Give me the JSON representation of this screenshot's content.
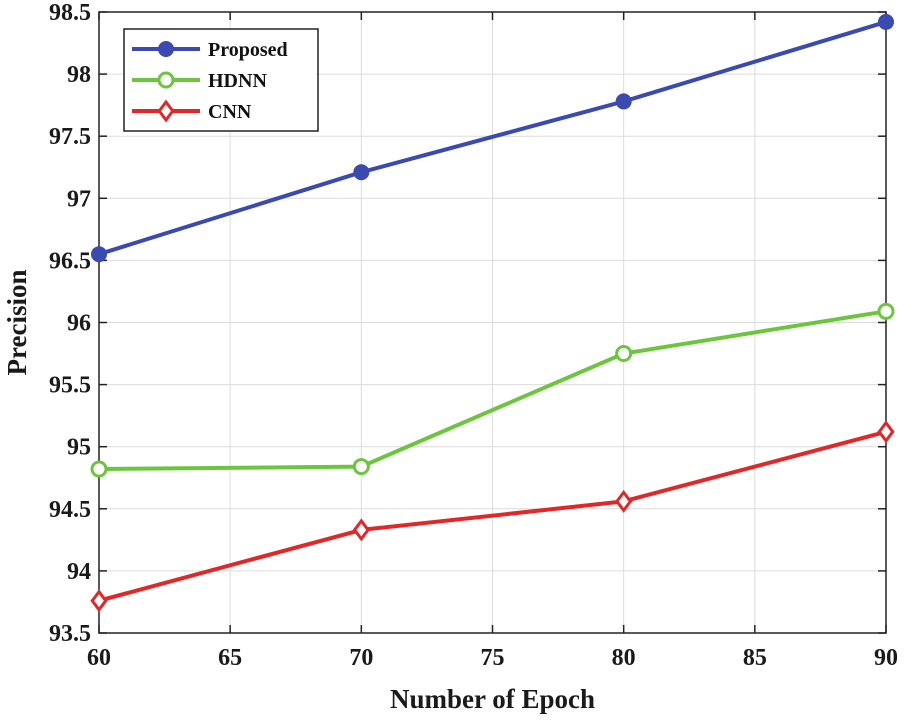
{
  "chart_data": {
    "type": "line",
    "title": "",
    "xlabel": "Number of Epoch",
    "ylabel": "Precision",
    "x": [
      60,
      70,
      80,
      90
    ],
    "xlim": [
      60,
      90
    ],
    "ylim": [
      93.5,
      98.5
    ],
    "xticks": [
      60,
      65,
      70,
      75,
      80,
      85,
      90
    ],
    "yticks": [
      93.5,
      94,
      94.5,
      95,
      95.5,
      96,
      96.5,
      97,
      97.5,
      98,
      98.5
    ],
    "xtick_labels": [
      "60",
      "65",
      "70",
      "75",
      "80",
      "85",
      "90"
    ],
    "ytick_labels": [
      "93.5",
      "94",
      "94.5",
      "95",
      "95.5",
      "96",
      "96.5",
      "97",
      "97.5",
      "98",
      "98.5"
    ],
    "grid": true,
    "legend_position": "top-left",
    "series": [
      {
        "name": "Proposed",
        "values": [
          96.55,
          97.21,
          97.78,
          98.42
        ],
        "color": "#3a4ab0",
        "marker": "circle-filled"
      },
      {
        "name": "HDNN",
        "values": [
          94.82,
          94.84,
          95.75,
          96.09
        ],
        "color": "#6cc63c",
        "marker": "circle-open"
      },
      {
        "name": "CNN",
        "values": [
          93.76,
          94.33,
          94.56,
          95.12
        ],
        "color": "#e02828",
        "marker": "diamond-open"
      }
    ]
  }
}
